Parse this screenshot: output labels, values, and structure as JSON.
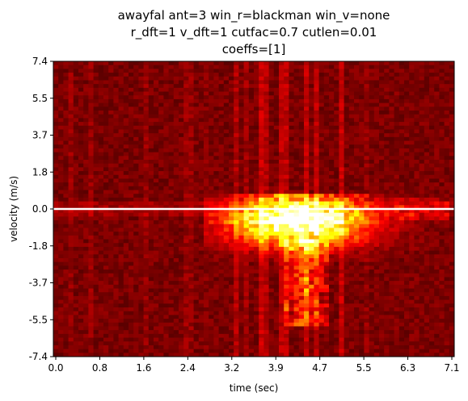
{
  "chart_data": {
    "type": "heatmap",
    "title_lines": [
      "awayfal ant=3 win_r=blackman win_v=none",
      "r_dft=1 v_dft=1 cutfac=0.7 cutlen=0.01",
      "coeffs=[1]"
    ],
    "xlabel": "time (sec)",
    "ylabel": "velocity (m/s)",
    "xlim": [
      0.0,
      7.1
    ],
    "ylim": [
      -7.4,
      7.4
    ],
    "xticks": [
      "0.0",
      "0.8",
      "1.6",
      "2.4",
      "3.2",
      "3.9",
      "4.7",
      "5.5",
      "6.3",
      "7.1"
    ],
    "yticks": [
      "7.4",
      "5.5",
      "3.7",
      "1.8",
      "0.0",
      "-1.8",
      "-3.7",
      "-5.5",
      "-7.4"
    ],
    "zero_line_velocity": 0.0,
    "colormap": "hot",
    "colors": {
      "line": "#ffffff",
      "background": "#3a0000"
    }
  }
}
